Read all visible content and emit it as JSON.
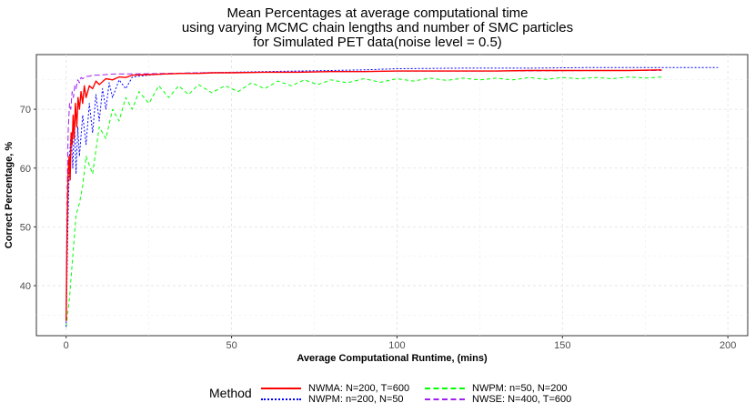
{
  "chart_data": {
    "type": "line",
    "title": [
      "Mean Percentages at average computational time",
      "using varying MCMC chain lengths and number of SMC particles",
      "for Simulated PET data(noise level = 0.5)"
    ],
    "xlabel": "Average Computational Runtime, (mins)",
    "ylabel": "Correct Percentage, %",
    "xlim": [
      -9,
      206
    ],
    "ylim": [
      31.5,
      79.3
    ],
    "xticks": [
      0,
      50,
      100,
      150,
      200
    ],
    "yticks": [
      40,
      50,
      60,
      70
    ],
    "grid": true,
    "legend_title": "Method",
    "legend_position": "bottom",
    "series": [
      {
        "name": "NWMA: N=200, T=600",
        "color": "#ff0000",
        "style": "solid",
        "x": [
          0,
          0.3,
          0.6,
          0.9,
          1.2,
          1.5,
          1.8,
          2.1,
          2.4,
          2.8,
          3.2,
          3.6,
          4.0,
          4.5,
          5.0,
          5.5,
          6.0,
          7.0,
          8.0,
          9.0,
          10,
          12,
          14,
          16,
          18,
          20,
          25,
          30,
          35,
          40,
          45,
          50,
          60,
          70,
          80,
          90,
          100,
          110,
          120,
          130,
          140,
          150,
          160,
          170,
          180
        ],
        "y": [
          34,
          50,
          59,
          62,
          58,
          66,
          64,
          69,
          65,
          71,
          67,
          72,
          70,
          73,
          71,
          74,
          72,
          74,
          73.5,
          74.8,
          74.2,
          75.2,
          75,
          75.5,
          75.4,
          75.8,
          75.9,
          76,
          76.1,
          76.1,
          76.2,
          76.2,
          76.3,
          76.3,
          76.4,
          76.4,
          76.5,
          76.5,
          76.5,
          76.5,
          76.6,
          76.6,
          76.6,
          76.6,
          76.7
        ]
      },
      {
        "name": "NWPM: n=200, N=50",
        "color": "#0000ff",
        "style": "dotted",
        "x": [
          0,
          0.5,
          1.0,
          1.5,
          2.0,
          2.5,
          3.0,
          3.5,
          4.0,
          5.0,
          6.0,
          7.0,
          8.0,
          9.0,
          10,
          11,
          12,
          13,
          14,
          16,
          18,
          20,
          25,
          30,
          40,
          50,
          60,
          70,
          80,
          90,
          100,
          120,
          140,
          160,
          180,
          197
        ],
        "y": [
          33,
          50,
          62,
          66,
          60,
          68,
          59,
          67,
          62,
          69,
          64,
          71,
          66,
          72.5,
          68,
          73.5,
          70,
          74.5,
          72,
          75,
          73.5,
          75.5,
          75.8,
          76,
          76.2,
          76.3,
          76.4,
          76.5,
          76.6,
          76.7,
          76.9,
          77,
          77,
          77.1,
          77.1,
          77.1
        ]
      },
      {
        "name": "NWPM: n=50, N=200",
        "color": "#00ff00",
        "style": "dashed",
        "x": [
          0,
          1,
          2,
          3,
          4,
          5,
          6,
          8,
          10,
          12,
          14,
          16,
          18,
          20,
          22,
          25,
          28,
          31,
          34,
          37,
          40,
          44,
          48,
          52,
          56,
          60,
          64,
          68,
          72,
          76,
          80,
          85,
          90,
          95,
          100,
          105,
          110,
          115,
          120,
          125,
          130,
          135,
          140,
          145,
          150,
          155,
          160,
          165,
          170,
          175,
          180
        ],
        "y": [
          33,
          38,
          45,
          52,
          54,
          57,
          62,
          59,
          67,
          65,
          70,
          68,
          72,
          70,
          73,
          71,
          74,
          72,
          74,
          72.5,
          74.2,
          72.8,
          74,
          73,
          74.5,
          73.5,
          74.8,
          74,
          75,
          74.2,
          75,
          74.5,
          75.2,
          74.6,
          75.2,
          74.8,
          75.3,
          74.9,
          75.3,
          75,
          75.3,
          75,
          75.4,
          75.1,
          75.4,
          75.2,
          75.4,
          75.2,
          75.5,
          75.3,
          75.5
        ]
      },
      {
        "name": "NWSE: N=400, T=600",
        "color": "#a020f0",
        "style": "longdash",
        "x": [
          0,
          0.3,
          0.6,
          1.0,
          1.4,
          1.8,
          2.2,
          2.6,
          3.0,
          3.5,
          4.0,
          4.5,
          5.0,
          6.0,
          7.0,
          8.0,
          10,
          12,
          15,
          20,
          30,
          40,
          60,
          80,
          100,
          130,
          160,
          180
        ],
        "y": [
          34,
          55,
          66,
          71,
          70,
          73,
          72,
          74,
          73.5,
          75,
          74.5,
          75.4,
          75.2,
          75.6,
          75.6,
          75.8,
          75.8,
          75.9,
          76,
          76,
          76.1,
          76.2,
          76.3,
          76.4,
          76.5,
          76.5,
          76.6,
          76.6
        ]
      }
    ]
  }
}
